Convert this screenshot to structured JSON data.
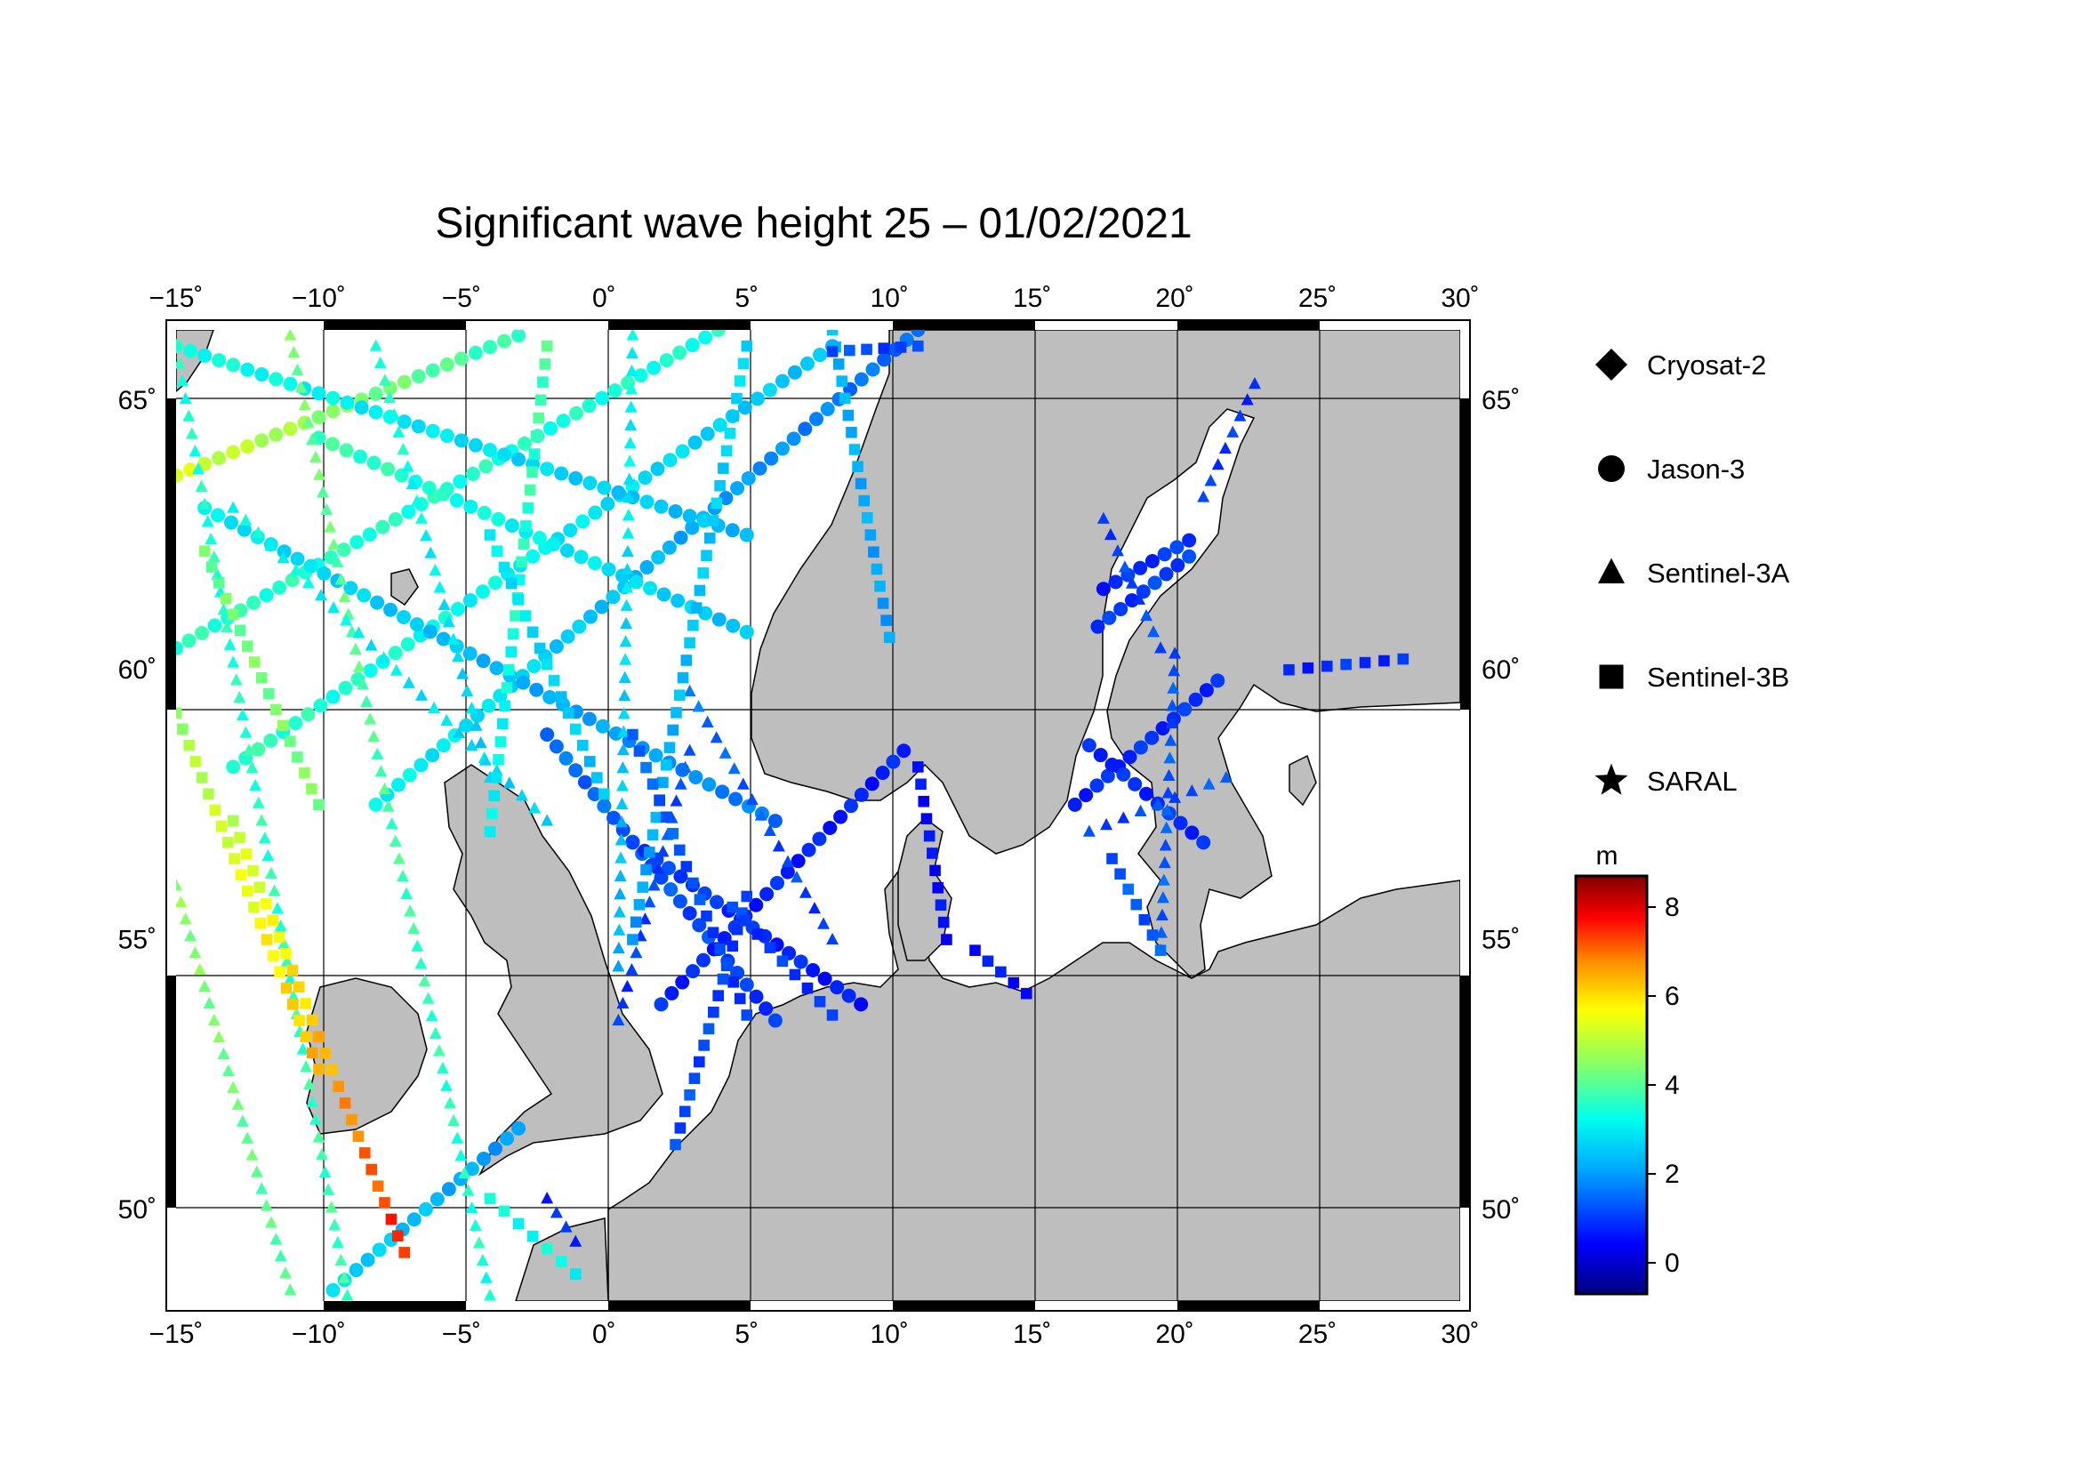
{
  "title": "Significant wave height 25 – 01/02/2021",
  "map": {
    "lon_range": [
      -15,
      30
    ],
    "lat_range": [
      48.3,
      66.3
    ],
    "lon_ticks": [
      {
        "value": -15,
        "label": "−15˚"
      },
      {
        "value": -10,
        "label": "−10˚"
      },
      {
        "value": -5,
        "label": "−5˚"
      },
      {
        "value": 0,
        "label": "0˚"
      },
      {
        "value": 5,
        "label": "5˚"
      },
      {
        "value": 10,
        "label": "10˚"
      },
      {
        "value": 15,
        "label": "15˚"
      },
      {
        "value": 20,
        "label": "20˚"
      },
      {
        "value": 25,
        "label": "25˚"
      },
      {
        "value": 30,
        "label": "30˚"
      }
    ],
    "lat_ticks": [
      {
        "value": 50,
        "label": "50˚"
      },
      {
        "value": 55,
        "label": "55˚"
      },
      {
        "value": 60,
        "label": "60˚"
      },
      {
        "value": 65,
        "label": "65˚"
      }
    ],
    "land_color": "#bebebe",
    "sea_color": "#ffffff"
  },
  "legend": [
    {
      "symbol": "diamond",
      "label": "Cryosat-2"
    },
    {
      "symbol": "circle",
      "label": "Jason-3"
    },
    {
      "symbol": "triangle",
      "label": "Sentinel-3A"
    },
    {
      "symbol": "square",
      "label": "Sentinel-3B"
    },
    {
      "symbol": "star",
      "label": "SARAL"
    }
  ],
  "colorbar": {
    "unit": "m",
    "min": -0.7,
    "max": 8.7,
    "ticks": [
      {
        "value": 0,
        "label": "0"
      },
      {
        "value": 2,
        "label": "2"
      },
      {
        "value": 4,
        "label": "4"
      },
      {
        "value": 6,
        "label": "6"
      },
      {
        "value": 8,
        "label": "8"
      }
    ]
  },
  "tracks": [
    {
      "sat": "circle",
      "from": [
        -15,
        63.6
      ],
      "to": [
        -3,
        66.2
      ],
      "h0": 5.3,
      "h1": 3.6
    },
    {
      "sat": "circle",
      "from": [
        -15,
        60.4
      ],
      "to": [
        4,
        66.3
      ],
      "h0": 3.6,
      "h1": 3.4
    },
    {
      "sat": "circle",
      "from": [
        -13,
        58.2
      ],
      "to": [
        8,
        66.0
      ],
      "h0": 3.7,
      "h1": 2.4
    },
    {
      "sat": "circle",
      "from": [
        -8,
        57.5
      ],
      "to": [
        11,
        66.3
      ],
      "h0": 3.2,
      "h1": 1.4
    },
    {
      "sat": "circle",
      "from": [
        -15,
        66.0
      ],
      "to": [
        5,
        62.5
      ],
      "h0": 3.4,
      "h1": 2.3
    },
    {
      "sat": "circle",
      "from": [
        -14,
        63.0
      ],
      "to": [
        6,
        57.2
      ],
      "h0": 3.0,
      "h1": 1.6
    },
    {
      "sat": "circle",
      "from": [
        -10,
        64.3
      ],
      "to": [
        5,
        60.7
      ],
      "h0": 3.8,
      "h1": 2.4
    },
    {
      "sat": "circle",
      "from": [
        -2,
        58.8
      ],
      "to": [
        6,
        53.5
      ],
      "h0": 1.6,
      "h1": 0.9
    },
    {
      "sat": "circle",
      "from": [
        1,
        56.8
      ],
      "to": [
        9,
        53.8
      ],
      "h0": 1.1,
      "h1": 0.6
    },
    {
      "sat": "circle",
      "from": [
        2,
        53.8
      ],
      "to": [
        10.5,
        58.5
      ],
      "h0": 0.8,
      "h1": 0.7
    },
    {
      "sat": "circle",
      "from": [
        -3,
        51.5
      ],
      "to": [
        -9.5,
        48.5
      ],
      "h0": 1.9,
      "h1": 2.8
    },
    {
      "sat": "circle",
      "from": [
        17.3,
        60.8
      ],
      "to": [
        20.5,
        62.1
      ],
      "h0": 0.9,
      "h1": 1.1
    },
    {
      "sat": "circle",
      "from": [
        17.5,
        61.5
      ],
      "to": [
        20.5,
        62.4
      ],
      "h0": 0.8,
      "h1": 1.0
    },
    {
      "sat": "circle",
      "from": [
        16.5,
        57.5
      ],
      "to": [
        21.5,
        59.8
      ],
      "h0": 0.8,
      "h1": 0.9
    },
    {
      "sat": "circle",
      "from": [
        17,
        58.6
      ],
      "to": [
        21,
        56.8
      ],
      "h0": 0.8,
      "h1": 0.9
    },
    {
      "sat": "triangle",
      "from": [
        -11,
        66.2
      ],
      "to": [
        -4,
        48.4
      ],
      "h0": 4.3,
      "h1": 3.4
    },
    {
      "sat": "triangle",
      "from": [
        -15,
        66.0
      ],
      "to": [
        -9,
        48.4
      ],
      "h0": 3.4,
      "h1": 3.8
    },
    {
      "sat": "triangle",
      "from": [
        -13,
        63.0
      ],
      "to": [
        -2,
        57.2
      ],
      "h0": 3.3,
      "h1": 2.6
    },
    {
      "sat": "triangle",
      "from": [
        -8,
        66.0
      ],
      "to": [
        -4,
        58.0
      ],
      "h0": 3.6,
      "h1": 2.5
    },
    {
      "sat": "triangle",
      "from": [
        1,
        66.2
      ],
      "to": [
        0.5,
        54.5
      ],
      "h0": 3.2,
      "h1": 2.2
    },
    {
      "sat": "triangle",
      "from": [
        0.5,
        53.5
      ],
      "to": [
        3,
        58.5
      ],
      "h0": 0.9,
      "h1": 1.3
    },
    {
      "sat": "triangle",
      "from": [
        3,
        59.6
      ],
      "to": [
        8,
        55.0
      ],
      "h0": 1.6,
      "h1": 0.9
    },
    {
      "sat": "triangle",
      "from": [
        -2,
        50.2
      ],
      "to": [
        -1,
        49.4
      ],
      "h0": 0.8,
      "h1": 0.9
    },
    {
      "sat": "triangle",
      "from": [
        20,
        60.3
      ],
      "to": [
        19.5,
        54.8
      ],
      "h0": 1.2,
      "h1": 1.4
    },
    {
      "sat": "triangle",
      "from": [
        17.5,
        62.8
      ],
      "to": [
        19.5,
        60.4
      ],
      "h0": 1.0,
      "h1": 1.2
    },
    {
      "sat": "triangle",
      "from": [
        17,
        57.0
      ],
      "to": [
        21.8,
        58.0
      ],
      "h0": 1.0,
      "h1": 1.3
    },
    {
      "sat": "triangle",
      "from": [
        21,
        63.2
      ],
      "to": [
        22.8,
        65.3
      ],
      "h0": 1.0,
      "h1": 0.9
    },
    {
      "sat": "triangle",
      "from": [
        -15,
        56.0
      ],
      "to": [
        -11,
        48.5
      ],
      "h0": 4.5,
      "h1": 3.9
    },
    {
      "sat": "square",
      "from": [
        -13,
        57.2
      ],
      "to": [
        -7,
        49.2
      ],
      "h0": 5.0,
      "h1": 7.6
    },
    {
      "sat": "square",
      "from": [
        -15,
        59.2
      ],
      "to": [
        -10,
        52.6
      ],
      "h0": 4.6,
      "h1": 6.4
    },
    {
      "sat": "square",
      "from": [
        -14,
        62.2
      ],
      "to": [
        -10,
        57.5
      ],
      "h0": 4.2,
      "h1": 4.4
    },
    {
      "sat": "square",
      "from": [
        -2,
        66.0
      ],
      "to": [
        -4,
        57.0
      ],
      "h0": 3.9,
      "h1": 3.0
    },
    {
      "sat": "square",
      "from": [
        -4,
        62.5
      ],
      "to": [
        0,
        57.7
      ],
      "h0": 3.0,
      "h1": 2.4
    },
    {
      "sat": "square",
      "from": [
        5,
        66.0
      ],
      "to": [
        1,
        55.0
      ],
      "h0": 2.8,
      "h1": 2.0
    },
    {
      "sat": "square",
      "from": [
        1,
        58.8
      ],
      "to": [
        5,
        53.6
      ],
      "h0": 1.5,
      "h1": 0.9
    },
    {
      "sat": "square",
      "from": [
        2.5,
        51.2
      ],
      "to": [
        5,
        55.8
      ],
      "h0": 1.2,
      "h1": 1.0
    },
    {
      "sat": "square",
      "from": [
        4.5,
        55.6
      ],
      "to": [
        8,
        53.6
      ],
      "h0": 1.0,
      "h1": 0.9
    },
    {
      "sat": "square",
      "from": [
        11,
        58.2
      ],
      "to": [
        12,
        55.0
      ],
      "h0": 0.5,
      "h1": 0.5
    },
    {
      "sat": "square",
      "from": [
        13,
        54.8
      ],
      "to": [
        14.8,
        54.0
      ],
      "h0": 0.6,
      "h1": 0.6
    },
    {
      "sat": "square",
      "from": [
        17.8,
        56.5
      ],
      "to": [
        19.5,
        54.8
      ],
      "h0": 1.3,
      "h1": 1.3
    },
    {
      "sat": "square",
      "from": [
        24,
        60.0
      ],
      "to": [
        28,
        60.2
      ],
      "h0": 0.8,
      "h1": 0.9
    },
    {
      "sat": "square",
      "from": [
        8,
        66.3
      ],
      "to": [
        10,
        60.6
      ],
      "h0": 2.3,
      "h1": 2.0
    },
    {
      "sat": "square",
      "from": [
        -4,
        50.2
      ],
      "to": [
        -1,
        48.8
      ],
      "h0": 3.3,
      "h1": 3.2
    },
    {
      "sat": "square",
      "from": [
        8,
        65.9
      ],
      "to": [
        11,
        66.0
      ],
      "h0": 1.2,
      "h1": 1.0
    }
  ]
}
